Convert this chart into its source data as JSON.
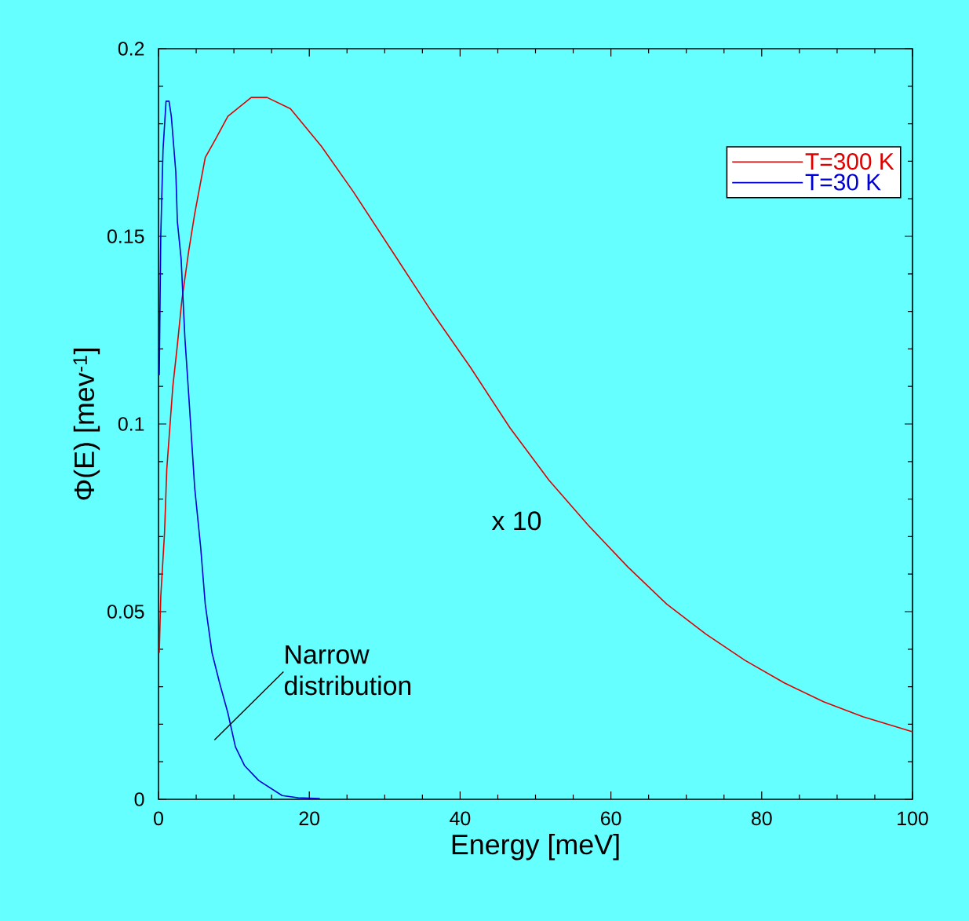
{
  "chart_data": {
    "type": "line",
    "xlabel": "Energy [meV]",
    "ylabel": "Φ(E) [mev$^{-1}$]",
    "xlim": [
      0,
      100
    ],
    "xticks": [
      0,
      20,
      40,
      60,
      80,
      100
    ],
    "ylim": [
      0,
      0.2
    ],
    "yticks": [
      0,
      0.05,
      0.1,
      0.15,
      0.2
    ],
    "grid": false,
    "legend": "top right",
    "marker": "none",
    "line_style": "solid",
    "annotations": [
      "x 10",
      {
        "text": "Narrow distribution",
        "x": 9.5,
        "y": 0.021
      }
    ],
    "series": [
      {
        "name": "T=300 K",
        "color": "#e00000",
        "x": [
          0.1,
          0.3,
          0.8,
          1.1,
          1.9,
          2.5,
          3.1,
          4,
          4.8,
          6.2,
          7.6,
          9.2,
          12.3,
          14.4,
          17.5,
          21.6,
          25.8,
          31,
          36.2,
          41.4,
          46.6,
          51.8,
          57,
          62.2,
          67.4,
          72.6,
          77.8,
          83,
          88.2,
          93.4,
          100
        ],
        "values": [
          0.039,
          0.054,
          0.071,
          0.088,
          0.11,
          0.121,
          0.133,
          0.146,
          0.156,
          0.171,
          0.176,
          0.182,
          0.187,
          0.187,
          0.184,
          0.174,
          0.162,
          0.146,
          0.13,
          0.115,
          0.099,
          0.085,
          0.073,
          0.062,
          0.052,
          0.044,
          0.037,
          0.031,
          0.026,
          0.022,
          0.018
        ]
      },
      {
        "name": "T=30 K",
        "color": "#0000d0",
        "x": [
          0.1,
          0.3,
          0.6,
          1.0,
          1.4,
          1.7,
          2.3,
          2.5,
          3.0,
          3.5,
          4,
          4.8,
          5.6,
          6.2,
          7.1,
          8.1,
          9.2,
          10.2,
          11.4,
          13.3,
          16.4,
          18.5,
          21.4
        ],
        "values": [
          0.113,
          0.15,
          0.173,
          0.186,
          0.186,
          0.182,
          0.167,
          0.154,
          0.144,
          0.123,
          0.108,
          0.083,
          0.067,
          0.052,
          0.039,
          0.031,
          0.023,
          0.014,
          0.009,
          0.005,
          0.001,
          0.0004,
          0.0002
        ]
      }
    ]
  }
}
